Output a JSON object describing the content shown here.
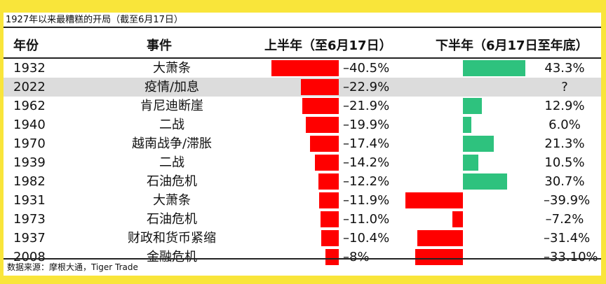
{
  "title": "1927年以来最糟糕的开局（截至6月17日）",
  "headers": {
    "year": "年份",
    "event": "事件",
    "first_half": "上半年（至6月17日）",
    "second_half": "下半年（6月17日至年底）"
  },
  "source": "数据来源：摩根大通，Tiger Trade",
  "colors": {
    "negative": "#ff0000",
    "positive": "#2ec27e",
    "highlight_row": "#dcdcdc",
    "page_background": "#f9e53a"
  },
  "chart_data": {
    "type": "table",
    "title": "1927年以来最糟糕的开局（截至6月17日）",
    "columns": [
      "年份",
      "事件",
      "上半年（至6月17日）",
      "下半年（6月17日至年底）"
    ],
    "rows": [
      {
        "year": "1932",
        "event": "大萧条",
        "first_half": -40.5,
        "first_half_label": "–40.5%",
        "second_half": 43.3,
        "second_half_label": "43.3%"
      },
      {
        "year": "2022",
        "event": "疫情/加息",
        "first_half": -22.9,
        "first_half_label": "–22.9%",
        "second_half": null,
        "second_half_label": "?",
        "highlight": true
      },
      {
        "year": "1962",
        "event": "肯尼迪断崖",
        "first_half": -21.9,
        "first_half_label": "–21.9%",
        "second_half": 12.9,
        "second_half_label": "12.9%"
      },
      {
        "year": "1940",
        "event": "二战",
        "first_half": -19.9,
        "first_half_label": "–19.9%",
        "second_half": 6.0,
        "second_half_label": "6.0%"
      },
      {
        "year": "1970",
        "event": "越南战争/滞胀",
        "first_half": -17.4,
        "first_half_label": "–17.4%",
        "second_half": 21.3,
        "second_half_label": "21.3%"
      },
      {
        "year": "1939",
        "event": "二战",
        "first_half": -14.2,
        "first_half_label": "–14.2%",
        "second_half": 10.5,
        "second_half_label": "10.5%"
      },
      {
        "year": "1982",
        "event": "石油危机",
        "first_half": -12.2,
        "first_half_label": "–12.2%",
        "second_half": 30.7,
        "second_half_label": "30.7%"
      },
      {
        "year": "1931",
        "event": "大萧条",
        "first_half": -11.9,
        "first_half_label": "–11.9%",
        "second_half": -39.9,
        "second_half_label": "–39.9%"
      },
      {
        "year": "1973",
        "event": "石油危机",
        "first_half": -11.0,
        "first_half_label": "–11.0%",
        "second_half": -7.2,
        "second_half_label": "–7.2%"
      },
      {
        "year": "1937",
        "event": "财政和货币紧缩",
        "first_half": -10.4,
        "first_half_label": "–10.4%",
        "second_half": -31.4,
        "second_half_label": "–31.4%"
      },
      {
        "year": "2008",
        "event": "金融危机",
        "first_half": -8.0,
        "first_half_label": "–8%",
        "second_half": -33.1,
        "second_half_label": "–33.10%"
      }
    ]
  }
}
